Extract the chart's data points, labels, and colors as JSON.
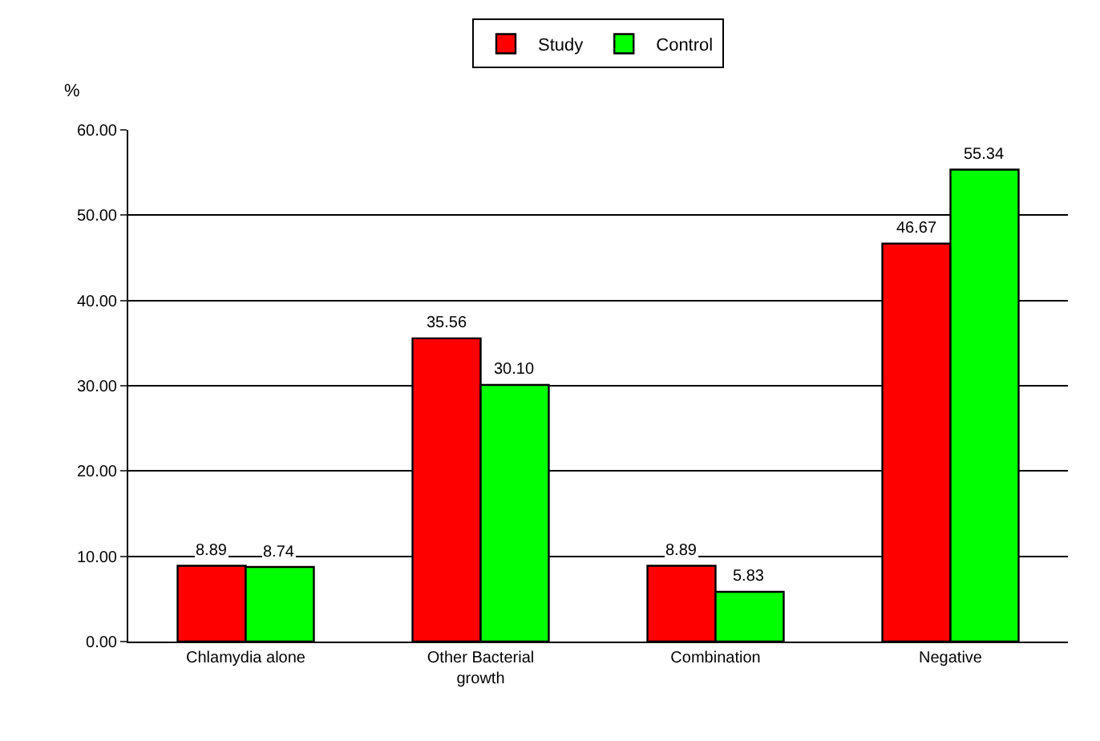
{
  "chart_data": {
    "type": "bar",
    "ylabel": "%",
    "categories": [
      "Chlamydia alone",
      "Other Bacterial growth",
      "Combination",
      "Negative"
    ],
    "series": [
      {
        "name": "Study",
        "color": "#ff0000",
        "values": [
          8.89,
          35.56,
          8.89,
          46.67
        ],
        "value_labels": [
          "8.89",
          "35.56",
          "8.89",
          "46.67"
        ]
      },
      {
        "name": "Control",
        "color": "#00ff00",
        "values": [
          8.74,
          30.1,
          5.83,
          55.34
        ],
        "value_labels": [
          "8.74",
          "30.10",
          "5.83",
          "55.34"
        ]
      }
    ],
    "ylim": [
      0,
      60
    ],
    "yticks": [
      {
        "value": 0,
        "label": "0.00"
      },
      {
        "value": 10,
        "label": "10.00"
      },
      {
        "value": 20,
        "label": "20.00"
      },
      {
        "value": 30,
        "label": "30.00"
      },
      {
        "value": 40,
        "label": "40.00"
      },
      {
        "value": 50,
        "label": "50.00"
      },
      {
        "value": 60,
        "label": "60.00"
      }
    ],
    "grid": "y",
    "legend": "top"
  }
}
